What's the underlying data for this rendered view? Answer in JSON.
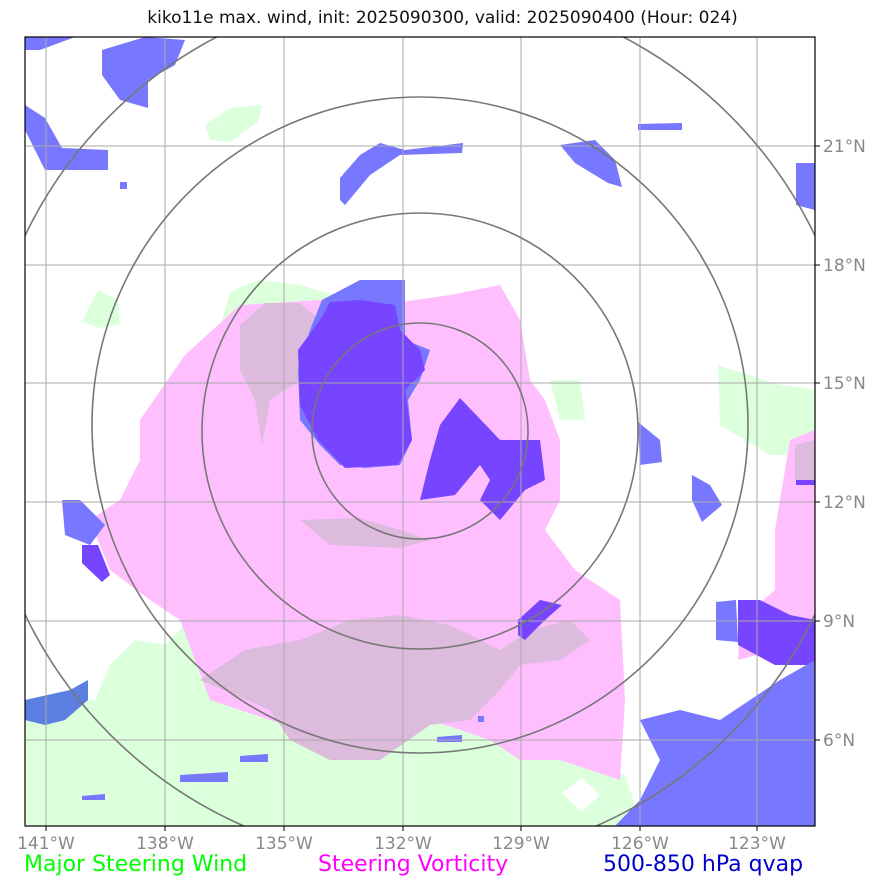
{
  "title": "kiko11e max. wind, init: 2025090300, valid: 2025090400 (Hour: 024)",
  "x_ticks": [
    "141°W",
    "138°W",
    "135°W",
    "132°W",
    "129°W",
    "126°W",
    "123°W"
  ],
  "y_ticks": [
    "21°N",
    "18°N",
    "15°N",
    "12°N",
    "9°N",
    "6°N"
  ],
  "legend": {
    "wind": "Major Steering Wind",
    "vorticity": "Steering Vorticity",
    "qvap": "500-850 hPa qvap"
  },
  "colors": {
    "wind": "#00ff00",
    "vorticity": "#ff00ff",
    "qvap": "#0000cc",
    "wind_fill": "#dcffdc",
    "vorticity_fill": "#ffbfff",
    "overlap_fill": "#ddbbdd",
    "qvap_fill": "#7777ff",
    "qvap_strong": "#7744ff",
    "range_ring": "#777777",
    "grid": "#aaaaaa"
  }
}
